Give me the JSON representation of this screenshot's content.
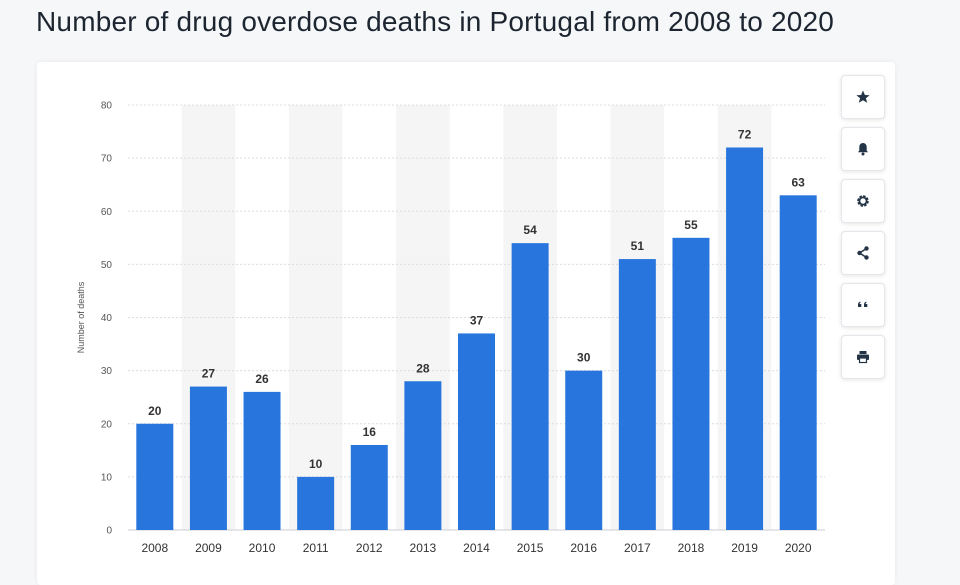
{
  "page": {
    "title": "Number of drug overdose deaths in Portugal from 2008 to 2020"
  },
  "colors": {
    "bar": "#2876dd",
    "stripe": "#f5f5f5",
    "grid": "#d8dce1",
    "text": "#333333",
    "axis_text": "#555555"
  },
  "tools": [
    {
      "name": "favorite",
      "icon": "star-icon"
    },
    {
      "name": "notification",
      "icon": "bell-icon"
    },
    {
      "name": "settings",
      "icon": "gear-icon"
    },
    {
      "name": "share",
      "icon": "share-icon"
    },
    {
      "name": "cite",
      "icon": "quote-icon"
    },
    {
      "name": "print",
      "icon": "printer-icon"
    }
  ],
  "chart_data": {
    "type": "bar",
    "title": "Number of drug overdose deaths in Portugal from 2008 to 2020",
    "xlabel": "",
    "ylabel": "Number of deaths",
    "ylim": [
      0,
      80
    ],
    "yticks": [
      0,
      10,
      20,
      30,
      40,
      50,
      60,
      70,
      80
    ],
    "categories": [
      "2008",
      "2009",
      "2010",
      "2011",
      "2012",
      "2013",
      "2014",
      "2015",
      "2016",
      "2017",
      "2018",
      "2019",
      "2020"
    ],
    "values": [
      20,
      27,
      26,
      10,
      16,
      28,
      37,
      54,
      30,
      51,
      55,
      72,
      63
    ],
    "grid": true
  }
}
